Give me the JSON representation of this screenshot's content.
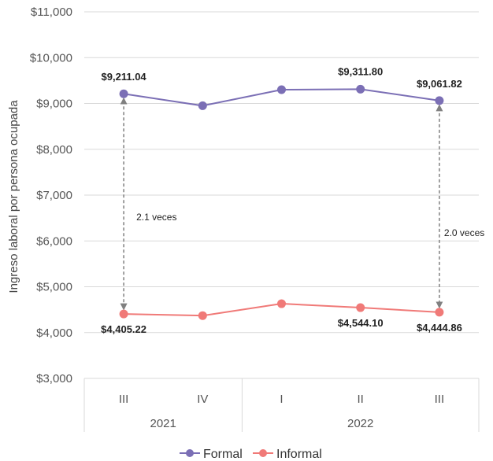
{
  "chart_data": {
    "type": "line",
    "ylabel": "Ingreso laboral por persona ocupada",
    "ylim": [
      3000,
      11000
    ],
    "yticks": [
      "$3,000",
      "$4,000",
      "$5,000",
      "$6,000",
      "$7,000",
      "$8,000",
      "$9,000",
      "$10,000",
      "$11,000"
    ],
    "grid": true,
    "categories": [
      "III",
      "IV",
      "I",
      "II",
      "III"
    ],
    "years": [
      {
        "label": "2021",
        "span": [
          0,
          1
        ]
      },
      {
        "label": "2022",
        "span": [
          2,
          4
        ]
      }
    ],
    "series": [
      {
        "name": "Formal",
        "color": "#7b6fb5",
        "values": [
          9211.04,
          8950,
          9300,
          9311.8,
          9061.82
        ],
        "labels": [
          "$9,211.04",
          "",
          "",
          "$9,311.80",
          "$9,061.82"
        ]
      },
      {
        "name": "Informal",
        "color": "#f07a78",
        "values": [
          4405.22,
          4370,
          4630,
          4544.1,
          4444.86
        ],
        "labels": [
          "$4,405.22",
          "",
          "",
          "$4,544.10",
          "$4,444.86"
        ]
      }
    ],
    "annotations": [
      {
        "index": 0,
        "text": "2.1 veces"
      },
      {
        "index": 4,
        "text": "2.0 veces"
      }
    ],
    "legend_position": "bottom"
  }
}
